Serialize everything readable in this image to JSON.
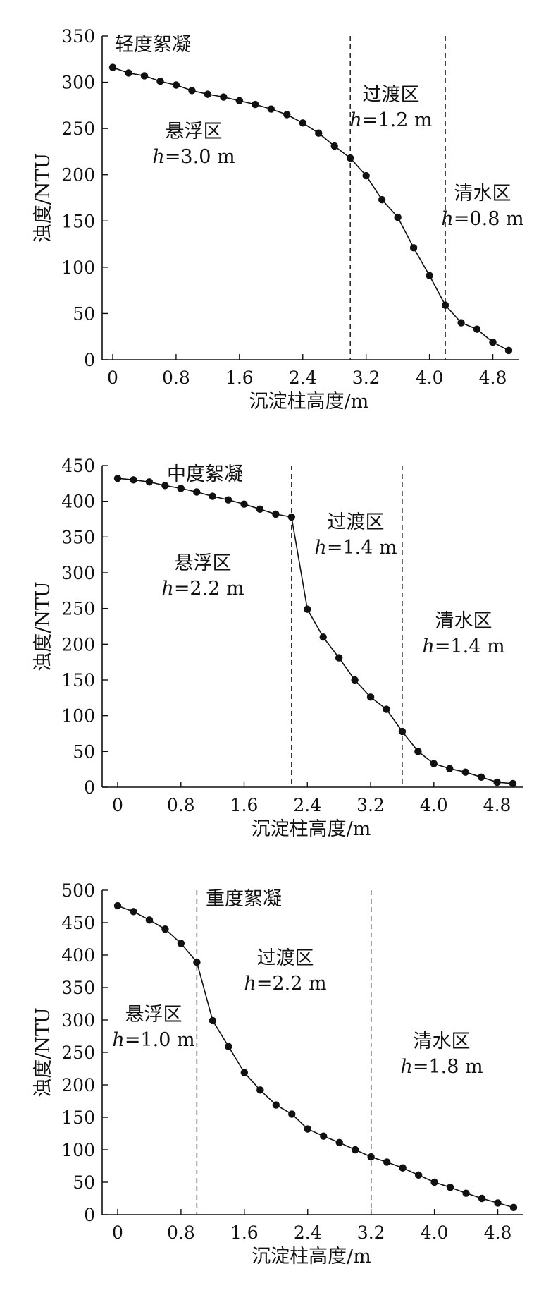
{
  "chart_data": [
    {
      "type": "line",
      "title": "轻度絮凝",
      "xlabel": "沉淀柱高度/m",
      "ylabel": "浊度/NTU",
      "xlim": [
        0,
        5.0
      ],
      "ylim": [
        0,
        350
      ],
      "xticks": [
        "0",
        "0.8",
        "1.6",
        "2.4",
        "3.2",
        "4.0",
        "4.8"
      ],
      "yticks": [
        "0",
        "50",
        "100",
        "150",
        "200",
        "250",
        "300",
        "350"
      ],
      "x": [
        0,
        0.2,
        0.4,
        0.6,
        0.8,
        1.0,
        1.2,
        1.4,
        1.6,
        1.8,
        2.0,
        2.2,
        2.4,
        2.6,
        2.8,
        3.0,
        3.2,
        3.4,
        3.6,
        3.8,
        4.0,
        4.2,
        4.4,
        4.6,
        4.8,
        5.0
      ],
      "y": [
        316,
        310,
        307,
        301,
        297,
        291,
        287,
        284,
        280,
        276,
        271,
        265,
        256,
        245,
        231,
        218,
        199,
        173,
        154,
        121,
        91,
        59,
        40,
        33,
        19,
        10
      ],
      "dividers": [
        3.0,
        4.2
      ],
      "zones": [
        {
          "name": "悬浮区",
          "h_prefix": "h",
          "h_value": "=3.0 m"
        },
        {
          "name": "过渡区",
          "h_prefix": "h",
          "h_value": "=1.2 m"
        },
        {
          "name": "清水区",
          "h_prefix": "h",
          "h_value": "=0.8 m"
        }
      ]
    },
    {
      "type": "line",
      "title": "中度絮凝",
      "xlabel": "沉淀柱高度/m",
      "ylabel": "浊度/NTU",
      "xlim": [
        0,
        5.0
      ],
      "ylim": [
        0,
        450
      ],
      "xticks": [
        "0",
        "0.8",
        "1.6",
        "2.4",
        "3.2",
        "4.0",
        "4.8"
      ],
      "yticks": [
        "0",
        "50",
        "100",
        "150",
        "200",
        "250",
        "300",
        "350",
        "400",
        "450"
      ],
      "x": [
        0,
        0.2,
        0.4,
        0.6,
        0.8,
        1.0,
        1.2,
        1.4,
        1.6,
        1.8,
        2.0,
        2.2,
        2.4,
        2.6,
        2.8,
        3.0,
        3.2,
        3.4,
        3.6,
        3.8,
        4.0,
        4.2,
        4.4,
        4.6,
        4.8,
        5.0
      ],
      "y": [
        432,
        430,
        427,
        422,
        418,
        413,
        407,
        402,
        396,
        389,
        382,
        378,
        249,
        210,
        181,
        150,
        126,
        109,
        78,
        50,
        33,
        26,
        21,
        14,
        7,
        5
      ],
      "dividers": [
        2.2,
        3.6
      ],
      "zones": [
        {
          "name": "悬浮区",
          "h_prefix": "h",
          "h_value": "=2.2 m"
        },
        {
          "name": "过渡区",
          "h_prefix": "h",
          "h_value": "=1.4 m"
        },
        {
          "name": "清水区",
          "h_prefix": "h",
          "h_value": "=1.4 m"
        }
      ]
    },
    {
      "type": "line",
      "title": "重度絮凝",
      "xlabel": "沉淀柱高度/m",
      "ylabel": "浊度/NTU",
      "xlim": [
        0,
        5.0
      ],
      "ylim": [
        0,
        500
      ],
      "xticks": [
        "0",
        "0.8",
        "1.6",
        "2.4",
        "3.2",
        "4.0",
        "4.8"
      ],
      "yticks": [
        "0",
        "50",
        "100",
        "150",
        "200",
        "250",
        "300",
        "350",
        "400",
        "450",
        "500"
      ],
      "x": [
        0,
        0.2,
        0.4,
        0.6,
        0.8,
        1.0,
        1.2,
        1.4,
        1.6,
        1.8,
        2.0,
        2.2,
        2.4,
        2.6,
        2.8,
        3.0,
        3.2,
        3.4,
        3.6,
        3.8,
        4.0,
        4.2,
        4.4,
        4.6,
        4.8,
        5.0
      ],
      "y": [
        476,
        467,
        454,
        440,
        418,
        389,
        299,
        259,
        219,
        192,
        169,
        155,
        132,
        121,
        111,
        100,
        89,
        81,
        72,
        61,
        50,
        42,
        33,
        25,
        18,
        11
      ],
      "dividers": [
        1.0,
        3.2
      ],
      "zones": [
        {
          "name": "悬浮区",
          "h_prefix": "h",
          "h_value": "=1.0 m"
        },
        {
          "name": "过渡区",
          "h_prefix": "h",
          "h_value": "=2.2 m"
        },
        {
          "name": "清水区",
          "h_prefix": "h",
          "h_value": "=1.8 m"
        }
      ]
    }
  ]
}
